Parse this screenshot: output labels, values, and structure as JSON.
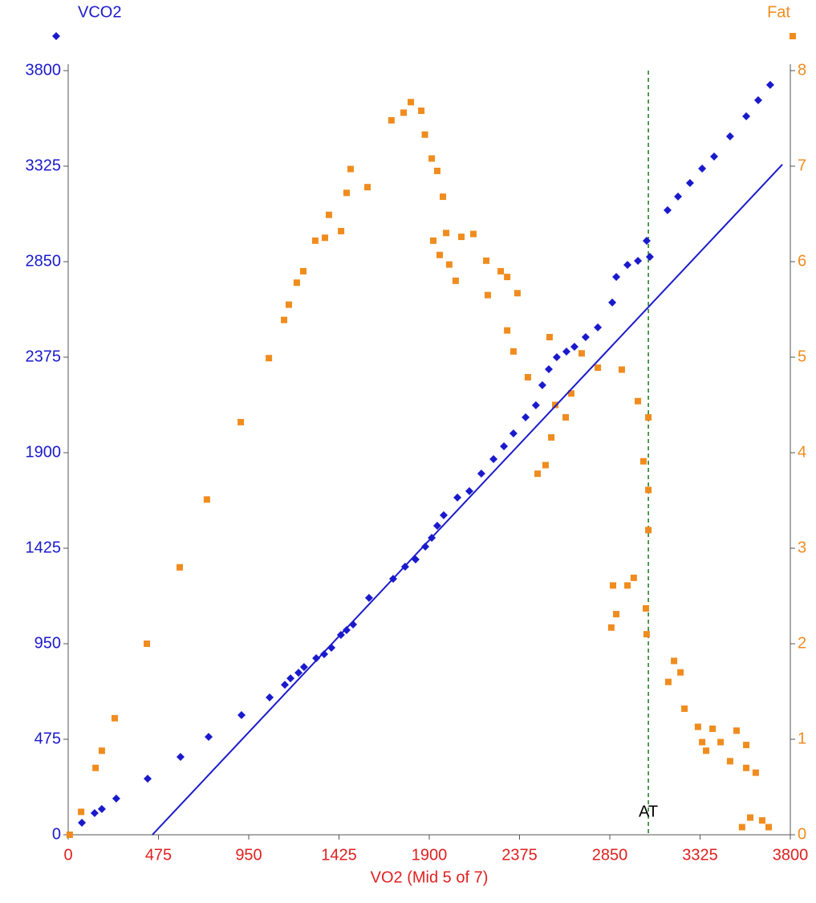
{
  "chart_data": {
    "type": "scatter",
    "x_label": "VO2 (Mid 5 of 7)",
    "xlim": [
      0,
      3800
    ],
    "xticks": [
      0,
      475,
      950,
      1425,
      1900,
      2375,
      2850,
      3325,
      3800
    ],
    "ylim": [
      0,
      3800
    ],
    "yticks": [
      0,
      475,
      950,
      1425,
      1900,
      2375,
      2850,
      3325,
      3800
    ],
    "y2lim": [
      0,
      8
    ],
    "y2ticks": [
      0,
      1,
      2,
      3,
      4,
      5,
      6,
      7,
      8
    ],
    "grid": false,
    "series": [
      {
        "name": "VCO2",
        "color": "#1a1acc",
        "marker": "diamond",
        "axis": "y",
        "x": [
          72,
          139,
          177,
          253,
          418,
          591,
          739,
          912,
          1060,
          1140,
          1170,
          1212,
          1241,
          1305,
          1347,
          1385,
          1435,
          1465,
          1499,
          1583,
          1710,
          1773,
          1828,
          1879,
          1913,
          1942,
          1976,
          2048,
          2111,
          2174,
          2238,
          2293,
          2343,
          2407,
          2461,
          2495,
          2529,
          2571,
          2622,
          2664,
          2723,
          2787,
          2863,
          2884,
          2943,
          2998,
          3044,
          3061,
          3154,
          3209,
          3272,
          3336,
          3399,
          3483,
          3568,
          3631,
          3694
        ],
        "values": [
          60,
          108,
          128,
          180,
          279,
          387,
          487,
          595,
          683,
          746,
          778,
          806,
          834,
          878,
          898,
          930,
          994,
          1018,
          1046,
          1178,
          1273,
          1333,
          1369,
          1433,
          1477,
          1537,
          1589,
          1677,
          1709,
          1796,
          1868,
          1932,
          1996,
          2076,
          2136,
          2236,
          2315,
          2375,
          2403,
          2427,
          2475,
          2523,
          2647,
          2774,
          2834,
          2854,
          2954,
          2874,
          3106,
          3174,
          3241,
          3313,
          3373,
          3473,
          3573,
          3653,
          3729
        ]
      },
      {
        "name": "Fat",
        "color": "#f08c1e",
        "marker": "square",
        "axis": "y2",
        "x": [
          8,
          68,
          144,
          177,
          245,
          414,
          587,
          730,
          908,
          1056,
          1136,
          1161,
          1203,
          1237,
          1300,
          1351,
          1372,
          1436,
          1465,
          1486,
          1575,
          1701,
          1765,
          1803,
          1858,
          1877,
          1913,
          1942,
          1955,
          1921,
          1972,
          1989,
          2005,
          2039,
          2069,
          2132,
          2200,
          2208,
          2276,
          2310,
          2364,
          2310,
          2343,
          2419,
          2470,
          2512,
          2542,
          2563,
          2533,
          2618,
          2647,
          2702,
          2787,
          2913,
          2998,
          3027,
          3053,
          3053,
          3053,
          3040,
          3044,
          2976,
          2943,
          2884,
          2867,
          2858,
          3158,
          3188,
          3222,
          3243,
          3314,
          3336,
          3357,
          3391,
          3433,
          3483,
          3517,
          3568,
          3568,
          3618,
          3546,
          3589,
          3652,
          3686
        ],
        "values": [
          0,
          0.24,
          0.7,
          0.88,
          1.22,
          2,
          2.8,
          3.51,
          4.32,
          4.99,
          5.39,
          5.55,
          5.78,
          5.9,
          6.22,
          6.25,
          6.49,
          6.32,
          6.72,
          6.97,
          6.78,
          7.48,
          7.56,
          7.67,
          7.58,
          7.33,
          7.08,
          6.95,
          6.07,
          6.22,
          6.68,
          6.3,
          5.97,
          5.8,
          6.26,
          6.29,
          6.01,
          5.65,
          5.9,
          5.84,
          5.67,
          5.28,
          5.06,
          4.79,
          3.78,
          3.87,
          4.16,
          4.5,
          5.21,
          4.37,
          4.62,
          5.04,
          4.89,
          4.87,
          4.54,
          3.91,
          4.37,
          3.61,
          3.19,
          2.37,
          2.1,
          2.69,
          2.61,
          2.31,
          2.61,
          2.17,
          1.6,
          1.82,
          1.7,
          1.32,
          1.13,
          0.97,
          0.88,
          1.11,
          0.97,
          0.77,
          1.09,
          0.94,
          0.7,
          0.65,
          0.08,
          0.18,
          0.15,
          0.08
        ]
      },
      {
        "color": "#1a1acc",
        "marker": "line",
        "axis": "y",
        "x": [
          443,
          3758
        ],
        "values": [
          0,
          3333
        ]
      }
    ],
    "annotations": [
      {
        "text": "AT",
        "x": 3053,
        "color": "#1a7a1a"
      }
    ]
  }
}
